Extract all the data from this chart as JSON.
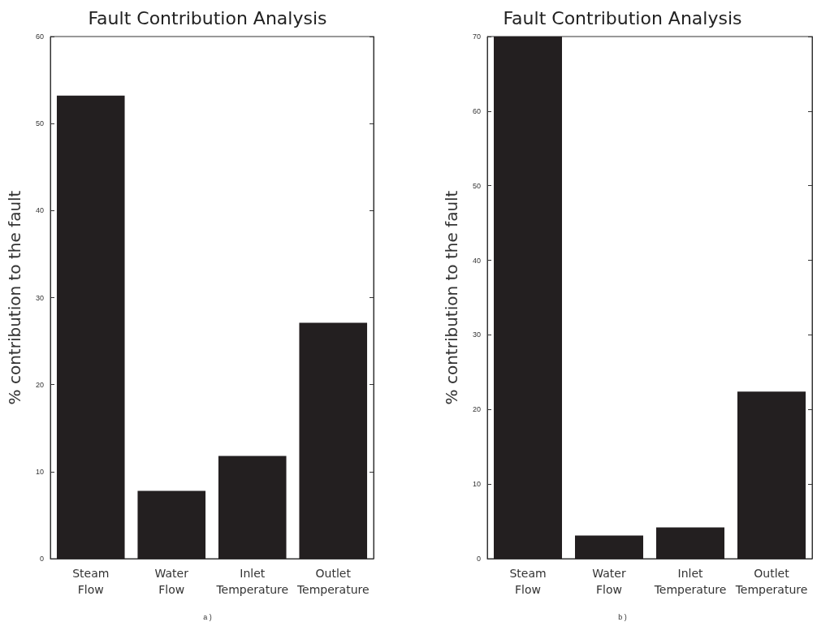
{
  "chart_data": [
    {
      "type": "bar",
      "title": "Fault Contribution Analysis",
      "ylabel": "% contribution to the fault",
      "categories": [
        "Steam Flow",
        "Water Flow",
        "Inlet Temperature",
        "Outlet Temperature"
      ],
      "values": [
        53.2,
        7.8,
        11.8,
        27.1
      ],
      "color": "#231f20",
      "ylim": [
        0,
        60
      ],
      "yticks": [
        0,
        10,
        20,
        30,
        40,
        50,
        60
      ],
      "grid": false,
      "annotations": [
        "a )"
      ]
    },
    {
      "type": "bar",
      "title": "Fault Contribution Analysis",
      "ylabel": "% contribution to the fault",
      "categories": [
        "Steam Flow",
        "Water Flow",
        "Inlet Temperature",
        "Outlet Temperature"
      ],
      "values": [
        70,
        3.1,
        4.2,
        22.4
      ],
      "color": "#231f20",
      "ylim": [
        0,
        70
      ],
      "yticks": [
        0,
        10,
        20,
        30,
        40,
        50,
        60,
        70
      ],
      "grid": false,
      "annotations": [
        "b )"
      ]
    }
  ]
}
